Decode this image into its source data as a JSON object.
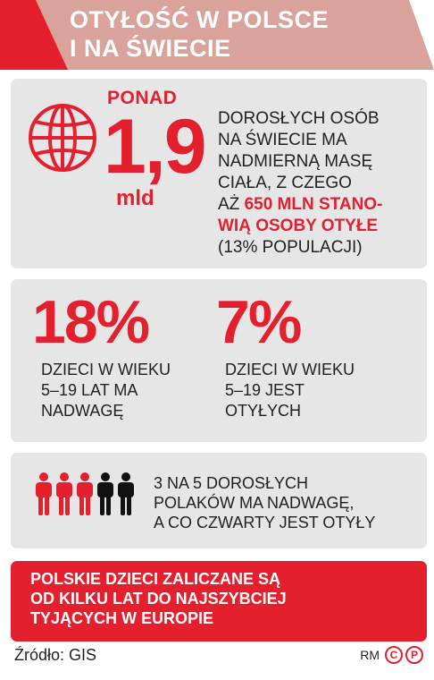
{
  "header": {
    "title_line1": "OTYŁOŚĆ W POLSCE",
    "title_line2": "I NA ŚWIECIE",
    "accent_color": "#e4202e",
    "band_color": "#d9a29a"
  },
  "panel1": {
    "icon": "globe-icon",
    "prefix": "PONAD",
    "value": "1,9",
    "unit": "mld",
    "text_lines": [
      "DOROSŁYCH OSÓB",
      "NA ŚWIECIE MA",
      "NADMIERNĄ MASĘ",
      "CIAŁA, Z CZEGO"
    ],
    "line5_plain": "AŻ ",
    "line5_highlight": "650 MLN STANO-",
    "line6_highlight": "WIĄ OSOBY OTYŁE",
    "line7": "(13% POPULACJI)"
  },
  "panel2": {
    "left": {
      "value": "18%",
      "lines": [
        "DZIECI W WIEKU",
        "5–19 LAT MA",
        "NADWAGĘ"
      ]
    },
    "right": {
      "value": "7%",
      "lines": [
        "DZIECI W WIEKU",
        "5–19 JEST",
        "OTYŁYCH"
      ]
    }
  },
  "panel3": {
    "icon": "people-icon",
    "people_total": 5,
    "people_highlighted": 3,
    "lines": [
      "3 NA 5 DOROSŁYCH",
      "POLAKÓW MA NADWAGĘ,",
      "A CO CZWARTY JEST OTYŁY"
    ]
  },
  "banner": {
    "lines": [
      "POLSKIE DZIECI ZALICZANE SĄ",
      "OD KILKU LAT DO NAJSZYBCIEJ",
      "TYJĄCYCH W EUROPIE"
    ]
  },
  "footer": {
    "source": "Źródło: GIS",
    "initials": "RM",
    "badge_c": "C",
    "badge_p": "P"
  }
}
